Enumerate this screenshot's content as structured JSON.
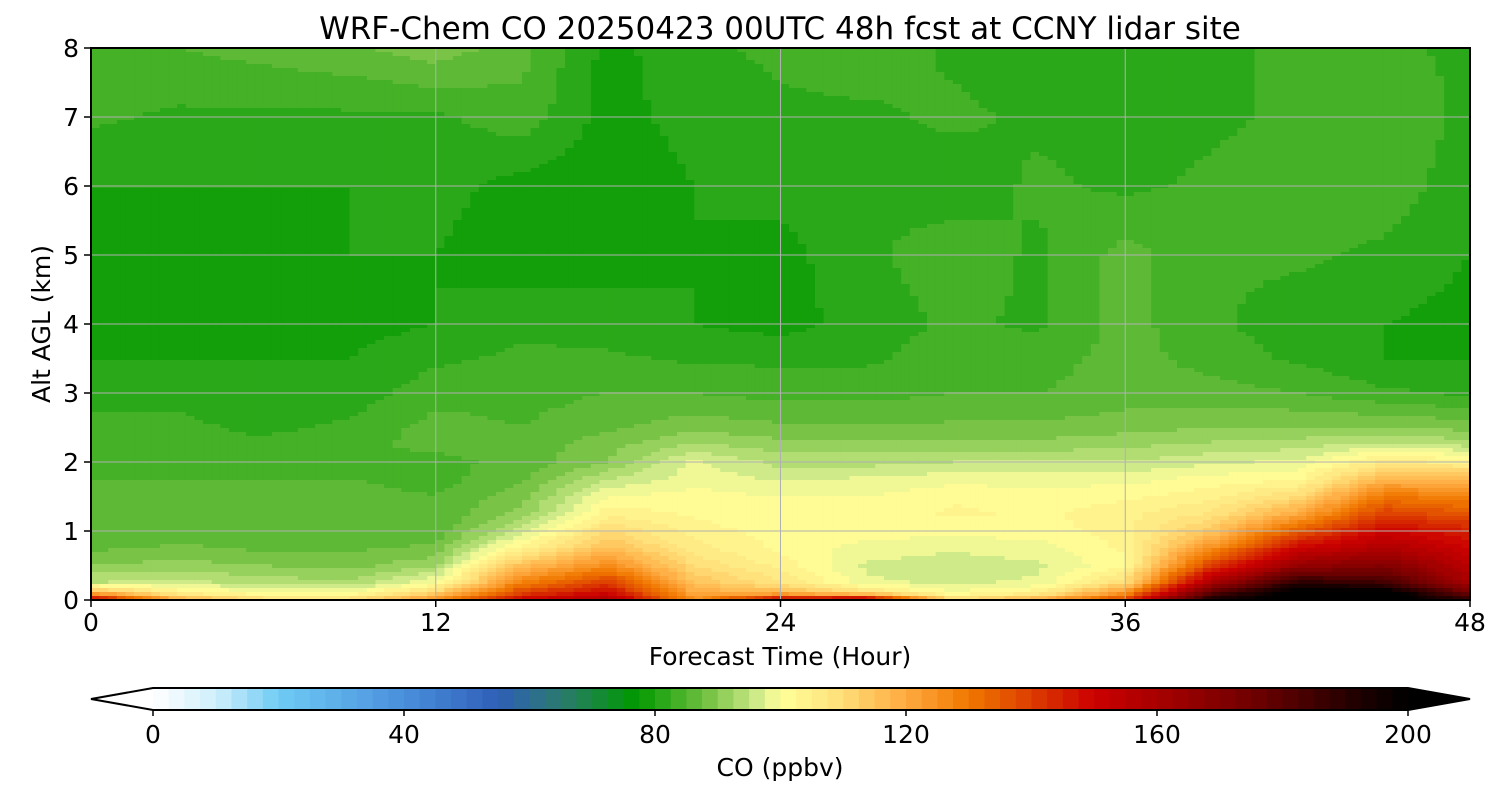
{
  "chart_data": {
    "type": "heatmap",
    "subtype": "filled-contour time-height cross-section",
    "title": "WRF-Chem CO  20250423 00UTC 48h fcst at CCNY lidar site",
    "xlabel": "Forecast Time (Hour)",
    "ylabel": "Alt AGL (km)",
    "xlim": [
      0,
      48
    ],
    "ylim": [
      0,
      8
    ],
    "xticks": [
      0,
      12,
      24,
      36,
      48
    ],
    "yticks": [
      0,
      1,
      2,
      3,
      4,
      5,
      6,
      7,
      8
    ],
    "grid": true,
    "hours": [
      0,
      3,
      6,
      9,
      12,
      15,
      18,
      21,
      24,
      27,
      30,
      33,
      36,
      39,
      42,
      45,
      48
    ],
    "altitudes_km": [
      0,
      0.1,
      0.25,
      0.5,
      0.75,
      1,
      1.25,
      1.5,
      1.75,
      2,
      2.25,
      2.5,
      3,
      3.5,
      4,
      5,
      6,
      7,
      8
    ],
    "values_ppbv": [
      [
        155,
        120,
        110,
        110,
        125,
        150,
        158,
        125,
        155,
        160,
        110,
        120,
        140,
        195,
        205,
        205,
        190
      ],
      [
        120,
        105,
        100,
        100,
        112,
        140,
        150,
        120,
        118,
        110,
        100,
        105,
        125,
        180,
        205,
        205,
        175
      ],
      [
        95,
        96,
        94,
        93,
        100,
        128,
        140,
        115,
        108,
        98,
        97,
        98,
        110,
        160,
        190,
        185,
        160
      ],
      [
        90,
        91,
        90,
        89,
        92,
        116,
        126,
        110,
        104,
        97,
        96,
        97,
        102,
        140,
        165,
        170,
        155
      ],
      [
        87,
        88,
        87,
        87,
        88,
        104,
        116,
        106,
        102,
        99,
        98,
        99,
        103,
        125,
        150,
        158,
        150
      ],
      [
        85,
        86,
        86,
        86,
        86,
        96,
        110,
        104,
        101,
        101,
        101,
        101,
        104,
        114,
        135,
        150,
        145
      ],
      [
        86,
        86,
        86,
        86,
        85,
        91,
        104,
        102,
        100,
        101,
        103,
        102,
        104,
        108,
        120,
        140,
        135
      ],
      [
        86,
        85,
        86,
        86,
        85,
        89,
        100,
        101,
        100,
        100,
        102,
        101,
        102,
        104,
        110,
        130,
        128
      ],
      [
        85,
        85,
        85,
        85,
        84,
        87,
        95,
        99,
        97,
        98,
        99,
        99,
        99,
        101,
        102,
        118,
        118
      ],
      [
        84,
        84,
        84,
        84,
        84,
        86,
        90,
        98,
        94,
        94,
        95,
        95,
        95,
        97,
        98,
        106,
        104
      ],
      [
        83,
        83,
        83,
        84,
        86,
        86,
        89,
        93,
        91,
        91,
        91,
        91,
        92,
        93,
        94,
        96,
        94
      ],
      [
        83,
        83,
        82,
        83,
        86,
        85,
        87,
        89,
        88,
        88,
        88,
        88,
        89,
        90,
        90,
        90,
        89
      ],
      [
        82,
        82,
        81,
        81,
        84,
        84,
        85,
        85,
        84,
        84,
        85,
        85,
        86,
        86,
        85,
        83,
        82
      ],
      [
        80,
        80,
        80,
        80,
        82,
        83,
        83,
        82,
        82,
        82,
        84,
        84,
        86,
        84,
        82,
        80,
        80
      ],
      [
        79,
        79,
        79,
        79,
        80,
        82,
        81,
        80,
        79,
        81,
        83,
        82,
        86,
        83,
        81,
        80,
        79
      ],
      [
        80,
        79,
        79,
        80,
        80,
        78,
        79,
        80,
        79,
        82,
        84,
        82,
        86,
        83,
        83,
        82,
        80
      ],
      [
        80,
        80,
        80,
        80,
        81,
        79,
        78,
        80,
        81,
        82,
        81,
        83,
        82,
        83,
        84,
        84,
        81
      ],
      [
        83,
        82,
        82,
        82,
        82,
        84,
        79,
        81,
        82,
        82,
        83,
        82,
        81,
        82,
        83,
        84,
        82
      ],
      [
        84,
        85,
        86,
        87,
        89,
        86,
        79,
        82,
        83,
        84,
        82,
        81,
        80,
        81,
        84,
        83,
        82
      ]
    ],
    "colorbar": {
      "label": "CO  (ppbv)",
      "min": 0,
      "max": 200,
      "step": 2.5,
      "ticks": [
        0,
        40,
        80,
        120,
        160,
        200
      ],
      "extend": "both",
      "orientation": "horizontal",
      "color_stops": [
        {
          "v": 0,
          "c": "#ffffff"
        },
        {
          "v": 10,
          "c": "#cfeffb"
        },
        {
          "v": 20,
          "c": "#6fcbf5"
        },
        {
          "v": 40,
          "c": "#4a8fdc"
        },
        {
          "v": 55,
          "c": "#2f5fb8"
        },
        {
          "v": 65,
          "c": "#2a7a6e"
        },
        {
          "v": 77,
          "c": "#009900"
        },
        {
          "v": 88,
          "c": "#70c040"
        },
        {
          "v": 97,
          "c": "#d8ee90"
        },
        {
          "v": 100,
          "c": "#ffff99"
        },
        {
          "v": 108,
          "c": "#ffe680"
        },
        {
          "v": 120,
          "c": "#ffaa40"
        },
        {
          "v": 130,
          "c": "#f07800"
        },
        {
          "v": 142,
          "c": "#d83000"
        },
        {
          "v": 150,
          "c": "#cc0000"
        },
        {
          "v": 162,
          "c": "#a00000"
        },
        {
          "v": 175,
          "c": "#700000"
        },
        {
          "v": 190,
          "c": "#280000"
        },
        {
          "v": 200,
          "c": "#000000"
        }
      ]
    }
  }
}
